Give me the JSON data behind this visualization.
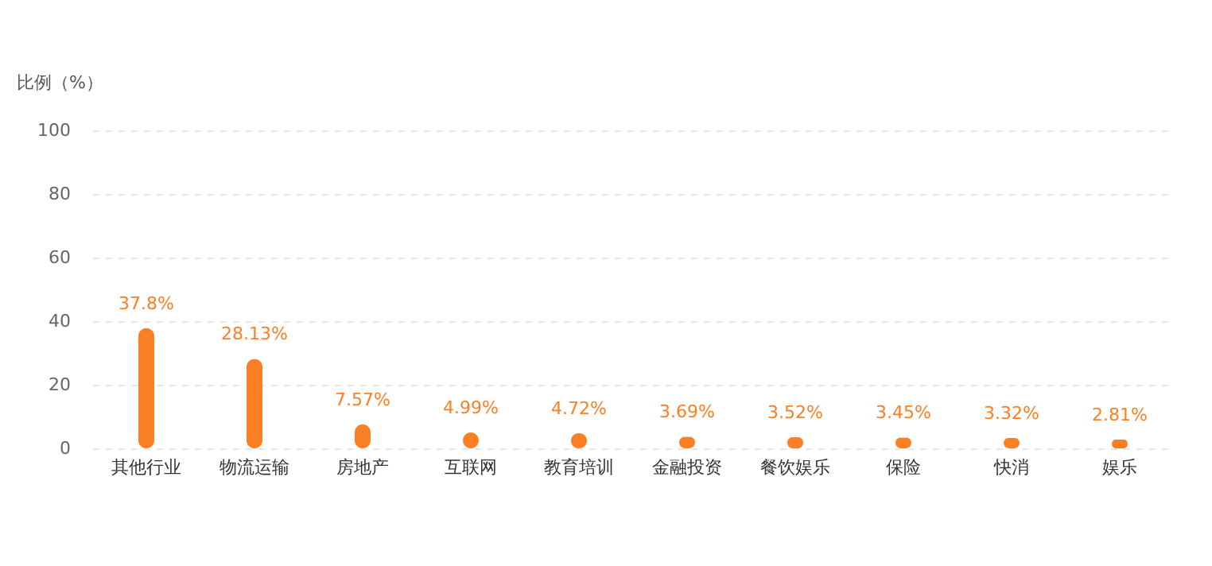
{
  "chart_data": {
    "type": "bar",
    "ylabel": "比例（%）",
    "categories": [
      "其他行业",
      "物流运输",
      "房地产",
      "互联网",
      "教育培训",
      "金融投资",
      "餐饮娱乐",
      "保险",
      "快消",
      "娱乐"
    ],
    "values": [
      37.8,
      28.13,
      7.57,
      4.99,
      4.72,
      3.69,
      3.52,
      3.45,
      3.32,
      2.81
    ],
    "value_labels": [
      "37.8%",
      "28.13%",
      "7.57%",
      "4.99%",
      "4.72%",
      "3.69%",
      "3.52%",
      "3.45%",
      "3.32%",
      "2.81%"
    ],
    "color": "#fb7f24",
    "ylim": [
      0,
      100
    ],
    "yticks": [
      0,
      20,
      40,
      60,
      80,
      100
    ],
    "grid": "y"
  }
}
